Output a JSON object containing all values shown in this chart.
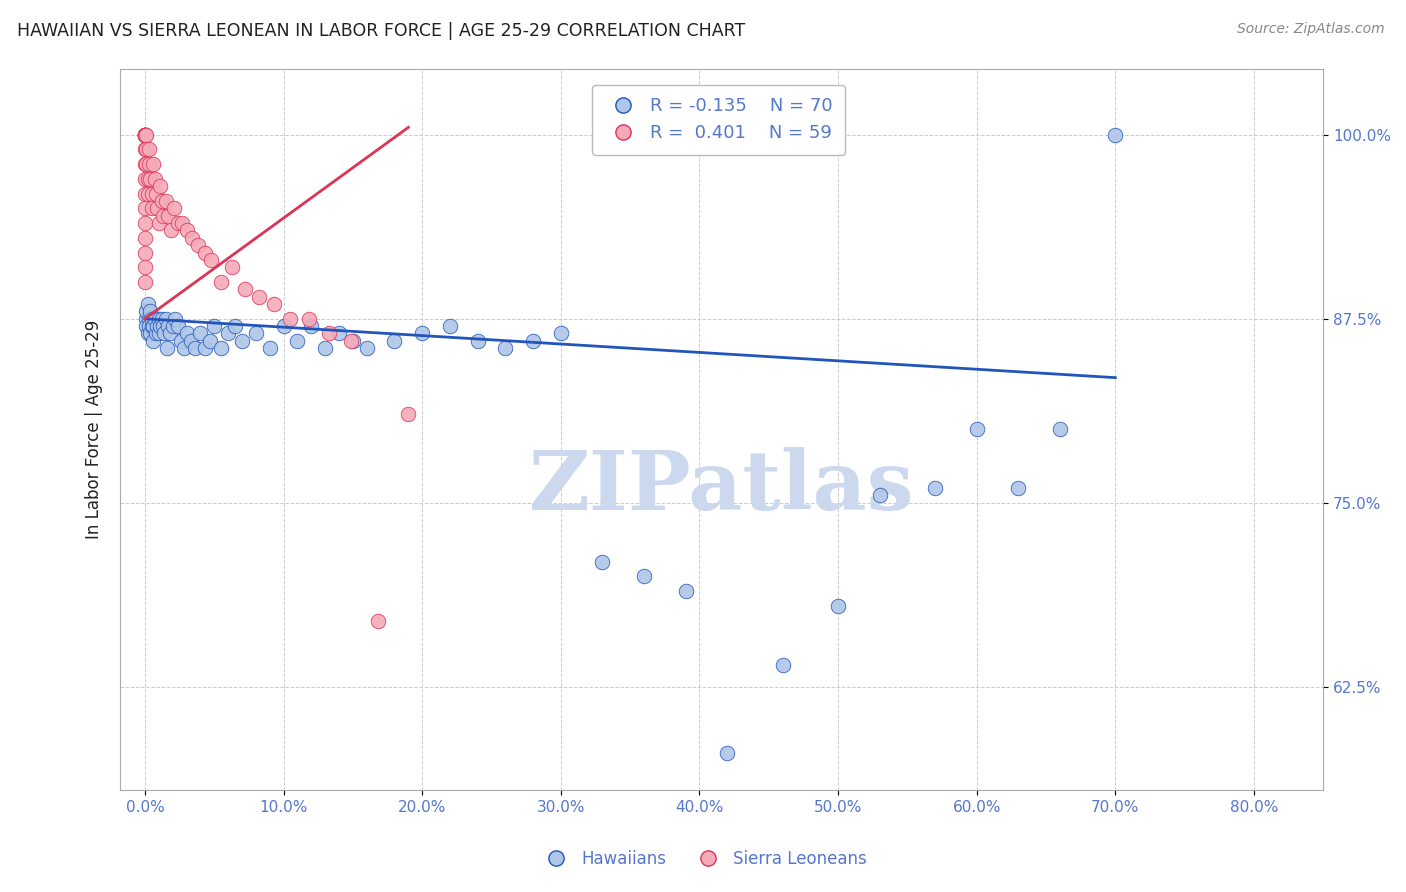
{
  "title": "HAWAIIAN VS SIERRA LEONEAN IN LABOR FORCE | AGE 25-29 CORRELATION CHART",
  "source": "Source: ZipAtlas.com",
  "xlabel_ticks": [
    "0.0%",
    "10.0%",
    "20.0%",
    "30.0%",
    "40.0%",
    "50.0%",
    "60.0%",
    "70.0%",
    "80.0%"
  ],
  "xlabel_vals": [
    0.0,
    0.1,
    0.2,
    0.3,
    0.4,
    0.5,
    0.6,
    0.7,
    0.8
  ],
  "ylabel_ticks": [
    "62.5%",
    "75.0%",
    "87.5%",
    "100.0%"
  ],
  "ylabel_vals": [
    0.625,
    0.75,
    0.875,
    1.0
  ],
  "ylim": [
    0.555,
    1.045
  ],
  "xlim": [
    -0.018,
    0.85
  ],
  "ylabel": "In Labor Force | Age 25-29",
  "blue_R": -0.135,
  "blue_N": 70,
  "pink_R": 0.401,
  "pink_N": 59,
  "blue_color": "#aec6e8",
  "pink_color": "#f5aab8",
  "blue_line_color": "#2255bb",
  "pink_line_color": "#dd3355",
  "watermark": "ZIPatlas",
  "watermark_color": "#ccd8ee",
  "background": "#ffffff",
  "grid_color": "#cccccc",
  "title_color": "#222222",
  "tick_label_color": "#5577cc",
  "legend_label1": "Hawaiians",
  "legend_label2": "Sierra Leoneans",
  "blue_x": [
    0.001,
    0.001,
    0.001,
    0.002,
    0.002,
    0.003,
    0.003,
    0.004,
    0.004,
    0.005,
    0.005,
    0.006,
    0.006,
    0.007,
    0.008,
    0.009,
    0.01,
    0.01,
    0.011,
    0.012,
    0.013,
    0.014,
    0.015,
    0.016,
    0.017,
    0.018,
    0.02,
    0.022,
    0.024,
    0.026,
    0.028,
    0.03,
    0.033,
    0.036,
    0.04,
    0.043,
    0.047,
    0.05,
    0.055,
    0.06,
    0.065,
    0.07,
    0.08,
    0.09,
    0.1,
    0.11,
    0.12,
    0.13,
    0.14,
    0.15,
    0.16,
    0.18,
    0.2,
    0.22,
    0.24,
    0.26,
    0.28,
    0.3,
    0.33,
    0.36,
    0.39,
    0.42,
    0.46,
    0.5,
    0.53,
    0.57,
    0.6,
    0.63,
    0.66,
    0.7
  ],
  "blue_y": [
    0.875,
    0.88,
    0.87,
    0.885,
    0.865,
    0.875,
    0.87,
    0.88,
    0.865,
    0.87,
    0.875,
    0.87,
    0.86,
    0.875,
    0.865,
    0.87,
    0.875,
    0.865,
    0.87,
    0.875,
    0.87,
    0.865,
    0.875,
    0.855,
    0.87,
    0.865,
    0.87,
    0.875,
    0.87,
    0.86,
    0.855,
    0.865,
    0.86,
    0.855,
    0.865,
    0.855,
    0.86,
    0.87,
    0.855,
    0.865,
    0.87,
    0.86,
    0.865,
    0.855,
    0.87,
    0.86,
    0.87,
    0.855,
    0.865,
    0.86,
    0.855,
    0.86,
    0.865,
    0.87,
    0.86,
    0.855,
    0.86,
    0.865,
    0.71,
    0.7,
    0.69,
    0.58,
    0.64,
    0.68,
    0.755,
    0.76,
    0.8,
    0.76,
    0.8,
    1.0
  ],
  "pink_x": [
    0.0,
    0.0,
    0.0,
    0.0,
    0.0,
    0.0,
    0.0,
    0.0,
    0.0,
    0.0,
    0.0,
    0.0,
    0.0,
    0.0,
    0.0,
    0.0,
    0.0,
    0.0,
    0.0,
    0.001,
    0.001,
    0.001,
    0.002,
    0.002,
    0.003,
    0.003,
    0.004,
    0.005,
    0.005,
    0.006,
    0.007,
    0.008,
    0.009,
    0.01,
    0.011,
    0.012,
    0.013,
    0.015,
    0.017,
    0.019,
    0.021,
    0.024,
    0.027,
    0.03,
    0.034,
    0.038,
    0.043,
    0.048,
    0.055,
    0.063,
    0.072,
    0.082,
    0.093,
    0.105,
    0.118,
    0.133,
    0.149,
    0.168,
    0.19
  ],
  "pink_y": [
    1.0,
    1.0,
    1.0,
    1.0,
    1.0,
    1.0,
    1.0,
    1.0,
    1.0,
    0.99,
    0.98,
    0.97,
    0.96,
    0.95,
    0.94,
    0.93,
    0.92,
    0.91,
    0.9,
    1.0,
    0.99,
    0.98,
    0.97,
    0.96,
    0.99,
    0.98,
    0.97,
    0.96,
    0.95,
    0.98,
    0.97,
    0.96,
    0.95,
    0.94,
    0.965,
    0.955,
    0.945,
    0.955,
    0.945,
    0.935,
    0.95,
    0.94,
    0.94,
    0.935,
    0.93,
    0.925,
    0.92,
    0.915,
    0.9,
    0.91,
    0.895,
    0.89,
    0.885,
    0.875,
    0.875,
    0.865,
    0.86,
    0.67,
    0.81
  ]
}
